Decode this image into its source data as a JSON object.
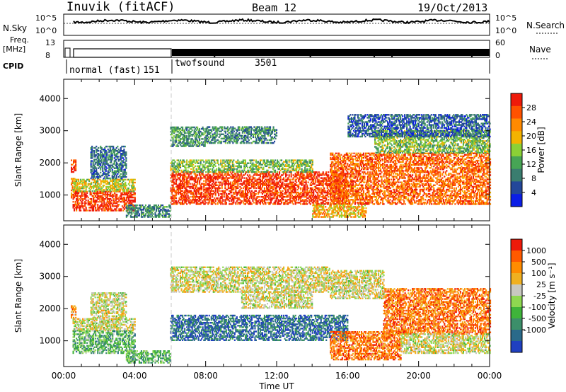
{
  "header": {
    "station": "Inuvik (fitACF)",
    "beam": "Beam 12",
    "date": "19/Oct/2013"
  },
  "top_panels": {
    "nsky_label": "N.Sky",
    "nsky_ticks": [
      "10^5",
      "10^0"
    ],
    "nsearch_label": "N.Search",
    "nsearch_ticks": [
      "10^5",
      "10^0"
    ],
    "freq_label": "Freq.",
    "freq_unit": "[MHz]",
    "freq_ticks": [
      "13",
      "8"
    ],
    "nave_label": "Nave",
    "nave_ticks": [
      "60",
      "0"
    ],
    "cpid_label": "CPID",
    "cpid_modes": [
      {
        "name": "normal (fast)",
        "id": "151",
        "start": 0.5,
        "end": 6.0
      },
      {
        "name": "twofsound",
        "id": "3501",
        "start": 6.0,
        "end": 24.0
      }
    ]
  },
  "x_axis": {
    "label": "Time UT",
    "ticks": [
      "00:00",
      "04:00",
      "08:00",
      "12:00",
      "16:00",
      "20:00",
      "00:00"
    ]
  },
  "chart_data": [
    {
      "type": "heatmap",
      "quantity": "power",
      "ylabel": "Slant Range [km]",
      "yticks": [
        1000,
        2000,
        3000,
        4000
      ],
      "ylim": [
        200,
        4600
      ],
      "xlim": [
        0,
        24
      ],
      "colorbar_label": "Power [dB]",
      "colorbar_ticks": [
        4,
        8,
        12,
        16,
        20,
        24,
        28
      ],
      "colorbar_colors": [
        "#0b1ee6",
        "#23479a",
        "#3a7d6f",
        "#47a555",
        "#8bd136",
        "#f3b300",
        "#ff8a00",
        "#ff5200",
        "#ee1a0a"
      ],
      "regions": [
        {
          "x": [
            0.4,
            0.7
          ],
          "y": [
            1700,
            2100
          ],
          "level": 0.9
        },
        {
          "x": [
            0.4,
            0.7
          ],
          "y": [
            900,
            1500
          ],
          "level": 0.7
        },
        {
          "x": [
            0.5,
            4.0
          ],
          "y": [
            500,
            1100
          ],
          "level": 0.9
        },
        {
          "x": [
            0.5,
            4.0
          ],
          "y": [
            1100,
            1500
          ],
          "level": 0.55
        },
        {
          "x": [
            1.5,
            3.5
          ],
          "y": [
            1500,
            2500
          ],
          "level": 0.25
        },
        {
          "x": [
            6.0,
            16.0
          ],
          "y": [
            700,
            1700
          ],
          "level": 0.9
        },
        {
          "x": [
            6.0,
            14.0
          ],
          "y": [
            1700,
            2100
          ],
          "level": 0.45
        },
        {
          "x": [
            6.0,
            8.0
          ],
          "y": [
            2500,
            3100
          ],
          "level": 0.35
        },
        {
          "x": [
            8.0,
            12.0
          ],
          "y": [
            2600,
            3100
          ],
          "level": 0.3
        },
        {
          "x": [
            15.0,
            24.0
          ],
          "y": [
            700,
            2300
          ],
          "level": 0.8
        },
        {
          "x": [
            17.5,
            24.0
          ],
          "y": [
            2300,
            3000
          ],
          "level": 0.45
        },
        {
          "x": [
            14.0,
            17.0
          ],
          "y": [
            300,
            700
          ],
          "level": 0.65
        },
        {
          "x": [
            16.0,
            24.0
          ],
          "y": [
            2800,
            3500
          ],
          "level": 0.2
        },
        {
          "x": [
            3.5,
            6.0
          ],
          "y": [
            300,
            700
          ],
          "level": 0.3
        }
      ]
    },
    {
      "type": "heatmap",
      "quantity": "velocity",
      "ylabel": "Slant Range [km]",
      "yticks": [
        1000,
        2000,
        3000,
        4000
      ],
      "ylim": [
        200,
        4600
      ],
      "xlim": [
        0,
        24
      ],
      "colorbar_label": "Velocity [m s⁻¹]",
      "colorbar_ticks": [
        1000,
        500,
        100,
        25,
        -25,
        -100,
        -500,
        -1000
      ],
      "colorbar_colors": [
        "#2040c0",
        "#2a6a8a",
        "#3c8f6a",
        "#3fb43a",
        "#8fd850",
        "#c8c8c0",
        "#f0b020",
        "#ff8c00",
        "#ff5a00",
        "#ee1a0a"
      ],
      "regions": [
        {
          "x": [
            0.4,
            0.7
          ],
          "y": [
            1700,
            2100
          ],
          "level": 0.75
        },
        {
          "x": [
            0.5,
            4.0
          ],
          "y": [
            1300,
            1700
          ],
          "level": 0.55
        },
        {
          "x": [
            0.5,
            4.0
          ],
          "y": [
            600,
            1300
          ],
          "level": 0.35
        },
        {
          "x": [
            1.5,
            3.5
          ],
          "y": [
            1700,
            2500
          ],
          "level": 0.55
        },
        {
          "x": [
            6.0,
            16.0
          ],
          "y": [
            1000,
            1800
          ],
          "level": 0.15
        },
        {
          "x": [
            6.0,
            15.0
          ],
          "y": [
            2500,
            3300
          ],
          "level": 0.55
        },
        {
          "x": [
            10.0,
            14.0
          ],
          "y": [
            2000,
            2500
          ],
          "level": 0.55
        },
        {
          "x": [
            15.0,
            19.0
          ],
          "y": [
            400,
            1300
          ],
          "level": 0.8
        },
        {
          "x": [
            18.0,
            24.0
          ],
          "y": [
            1200,
            2600
          ],
          "level": 0.8
        },
        {
          "x": [
            19.0,
            24.0
          ],
          "y": [
            600,
            1200
          ],
          "level": 0.55
        },
        {
          "x": [
            15.0,
            18.0
          ],
          "y": [
            2300,
            3200
          ],
          "level": 0.55
        },
        {
          "x": [
            3.5,
            6.0
          ],
          "y": [
            300,
            700
          ],
          "level": 0.35
        }
      ]
    }
  ]
}
